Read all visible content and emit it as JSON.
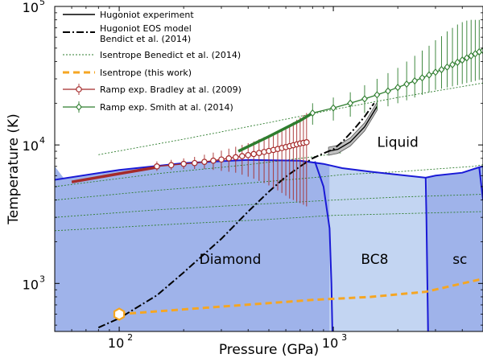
{
  "chart_data": {
    "type": "line",
    "xlabel": "Pressure (GPa)",
    "ylabel": "Temperature (K)",
    "xscale": "log",
    "yscale": "log",
    "xlim": [
      50,
      5000
    ],
    "ylim": [
      450,
      100000
    ],
    "x_ticks": [
      {
        "value": 100,
        "base": "10",
        "exp": "2"
      },
      {
        "value": 1000,
        "base": "10",
        "exp": "3"
      }
    ],
    "y_ticks": [
      {
        "value": 1000,
        "base": "10",
        "exp": "3"
      },
      {
        "value": 10000,
        "base": "10",
        "exp": "4"
      },
      {
        "value": 100000,
        "base": "10",
        "exp": "5"
      }
    ],
    "grid": false,
    "legend_position": "top-left",
    "colors": {
      "diamond_region": "#9fb3ea",
      "bc8_region": "#c3d5f2",
      "sc_region": "#9fb3ea",
      "liquid_region": "#ffffff",
      "phase_boundary": "#1a1ad6",
      "hugoniot_band": "#c0c0c0",
      "isentrope_benedict": "#2e7d2e",
      "isentrope_this_work": "#f5a623",
      "bradley": "#a52a2a",
      "smith": "#2e7d2e"
    },
    "regions": [
      {
        "label": "Diamond",
        "label_x": 330,
        "label_y": 1500
      },
      {
        "label": "BC8",
        "label_x": 1560,
        "label_y": 1500
      },
      {
        "label": "sc",
        "label_x": 3900,
        "label_y": 1500
      },
      {
        "label": "Liquid",
        "label_x": 2000,
        "label_y": 10500
      }
    ],
    "phase_boundaries": [
      {
        "name": "melt",
        "x": [
          50,
          100,
          200,
          400,
          700,
          900,
          1100,
          1500,
          2000,
          2700,
          3000,
          4000,
          4800,
          5000
        ],
        "y": [
          5600,
          6600,
          7400,
          7800,
          7700,
          7300,
          6800,
          6400,
          6100,
          5800,
          6000,
          6300,
          6900,
          7000
        ]
      },
      {
        "name": "diamond-bc8",
        "x": [
          820,
          900,
          960,
          980,
          990
        ],
        "y": [
          7600,
          5000,
          2500,
          1000,
          450
        ]
      },
      {
        "name": "bc8-sc",
        "x": [
          2700,
          2720,
          2750,
          2770
        ],
        "y": [
          5800,
          3000,
          1000,
          450
        ]
      },
      {
        "name": "sc-right",
        "x": [
          4800,
          5000
        ],
        "y": [
          6900,
          4000
        ]
      }
    ],
    "series": [
      {
        "name": "Hugoniot experiment",
        "style": "solid",
        "x": [
          950,
          1050,
          1200,
          1400,
          1600
        ],
        "y": [
          9000,
          9300,
          10500,
          13500,
          19000
        ]
      },
      {
        "name": "Hugoniot EOS model Bendict et al. (2014)",
        "legend_lines": [
          "Hugoniot EOS model",
          "Bendict et al. (2014)"
        ],
        "style": "dashdot",
        "x": [
          80,
          100,
          150,
          200,
          300,
          400,
          500,
          600,
          700,
          800,
          900,
          1000,
          1100,
          1250,
          1400,
          1550
        ],
        "y": [
          480,
          560,
          820,
          1200,
          2100,
          3300,
          4600,
          5900,
          7000,
          8000,
          8700,
          9300,
          10500,
          13000,
          16000,
          20000
        ]
      },
      {
        "name": "Isentrope Benedict et al. (2014)",
        "style": "dotted-thin",
        "lines": [
          {
            "x": [
              80,
              200,
              500,
              1000,
              2000,
              5000
            ],
            "y": [
              8500,
              11000,
              14500,
              18000,
              22000,
              28000
            ]
          },
          {
            "x": [
              50,
              150,
              400,
              800,
              1100
            ],
            "y": [
              5000,
              6200,
              7200,
              8200,
              8800
            ]
          },
          {
            "x": [
              50,
              150,
              400,
              700,
              900,
              1100,
              2000,
              3000,
              4500,
              5000
            ],
            "y": [
              4000,
              4700,
              5300,
              5700,
              5900,
              6100,
              6400,
              6700,
              7000,
              7200
            ]
          },
          {
            "x": [
              50,
              150,
              400,
              1000,
              2000,
              5000
            ],
            "y": [
              3000,
              3400,
              3700,
              4000,
              4200,
              4400
            ]
          },
          {
            "x": [
              50,
              200,
              500,
              1000,
              5000
            ],
            "y": [
              2400,
              2700,
              2900,
              3100,
              3300
            ]
          }
        ]
      },
      {
        "name": "Isentrope (this work)",
        "style": "dashed-thick",
        "x": [
          100,
          300,
          800,
          1500,
          2700,
          5000
        ],
        "y": [
          600,
          680,
          760,
          800,
          870,
          1080
        ]
      },
      {
        "name": "Ramp exp. Bradley at al. (2009)",
        "style": "line-marker-circle",
        "x": [
          150,
          175,
          200,
          225,
          250,
          275,
          300,
          325,
          350,
          375,
          400,
          425,
          450,
          475,
          500,
          525,
          550,
          575,
          600,
          625,
          650,
          675,
          700,
          725,
          750
        ],
        "y": [
          7000,
          7150,
          7300,
          7400,
          7550,
          7700,
          7850,
          8000,
          8150,
          8300,
          8450,
          8600,
          8750,
          8900,
          9050,
          9200,
          9350,
          9500,
          9650,
          9800,
          9950,
          10100,
          10250,
          10350,
          10450
        ],
        "yerr_top": [
          7600,
          7800,
          8000,
          8200,
          8500,
          8800,
          9100,
          9400,
          9700,
          10000,
          10300,
          10600,
          11000,
          11400,
          11800,
          12200,
          12600,
          13000,
          13400,
          14000,
          14600,
          15200,
          15800,
          16400,
          17000
        ],
        "yerr_bottom": [
          6500,
          6600,
          6700,
          6700,
          6700,
          6600,
          6500,
          6400,
          6300,
          6100,
          5900,
          5700,
          5500,
          5300,
          5100,
          4900,
          4700,
          4500,
          4300,
          4100,
          4000,
          3900,
          3800,
          3700,
          3600
        ]
      },
      {
        "name": "Bradley fit (thick)",
        "style": "thick-brown",
        "x": [
          60,
          100,
          150
        ],
        "y": [
          5400,
          6200,
          6900
        ]
      },
      {
        "name": "Ramp exp. Smith at al. (2014)",
        "style": "line-marker-diamond",
        "x": [
          800,
          1000,
          1200,
          1400,
          1600,
          1800,
          2000,
          2200,
          2400,
          2600,
          2800,
          3000,
          3200,
          3400,
          3600,
          3800,
          4000,
          4200,
          4400,
          4600,
          4800,
          5000
        ],
        "y": [
          17000,
          18500,
          20000,
          21500,
          23000,
          24500,
          26000,
          27500,
          29000,
          30500,
          32000,
          33500,
          35000,
          36500,
          38000,
          39500,
          41000,
          42500,
          44000,
          45500,
          47000,
          48000
        ],
        "yerr_top": [
          20000,
          22000,
          24000,
          27000,
          30000,
          33000,
          36000,
          40000,
          44000,
          48000,
          52000,
          57000,
          61000,
          66000,
          70000,
          74000,
          77000,
          79000,
          80000,
          80000,
          80000,
          78000
        ],
        "yerr_bottom": [
          14000,
          15000,
          16000,
          17000,
          18000,
          19000,
          20000,
          21000,
          22000,
          23000,
          24000,
          25000,
          25500,
          26000,
          26500,
          27000,
          27500,
          28000,
          28500,
          29000,
          29500,
          30000
        ]
      },
      {
        "name": "Smith fit (thick)",
        "style": "thick-green",
        "x": [
          360,
          500,
          700,
          800
        ],
        "y": [
          9000,
          11500,
          15000,
          17000
        ]
      }
    ],
    "start_marker": {
      "x": 100,
      "y": 600
    }
  }
}
